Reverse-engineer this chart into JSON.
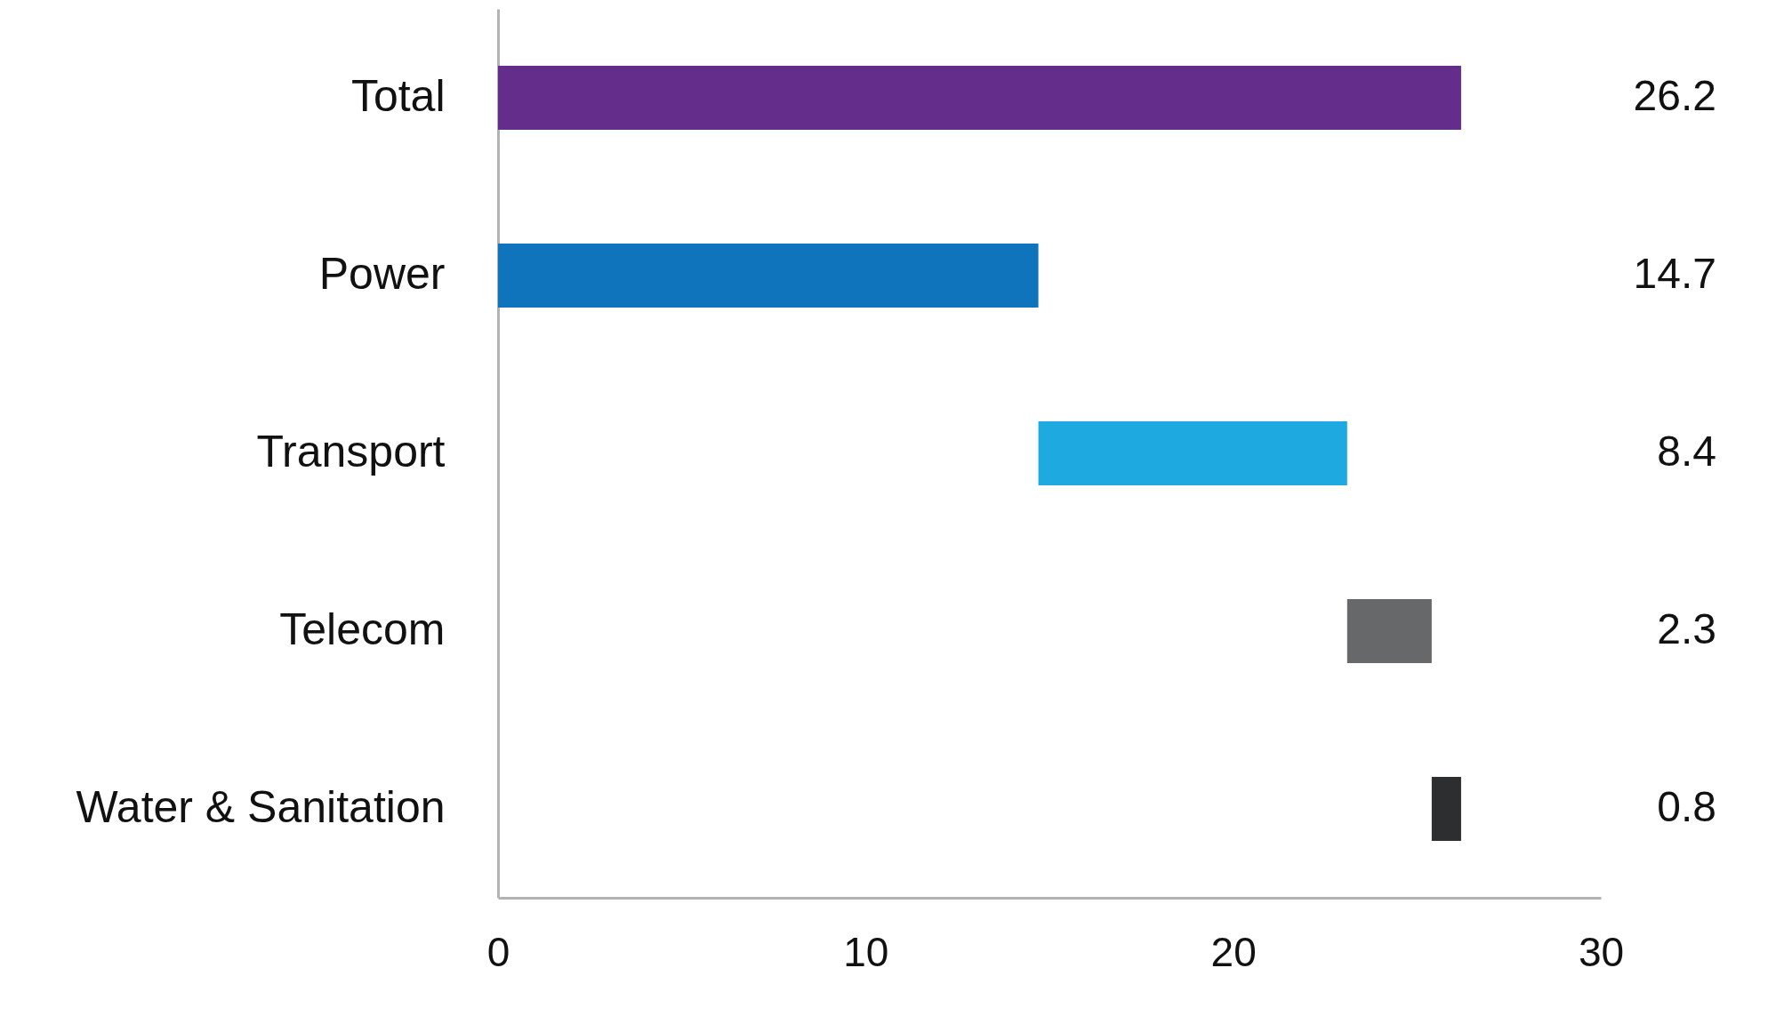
{
  "chart_data": {
    "type": "bar",
    "orientation": "horizontal",
    "categories": [
      "Total",
      "Power",
      "Transport",
      "Telecom",
      "Water & Sanitation"
    ],
    "values": [
      26.2,
      14.7,
      8.4,
      2.3,
      0.8
    ],
    "base": [
      0,
      0,
      14.7,
      23.1,
      25.4
    ],
    "colors": [
      "#642d8c",
      "#0f74bb",
      "#1fa9e1",
      "#676869",
      "#2c2e30"
    ],
    "xlim": [
      0,
      30
    ],
    "xticks": [
      0,
      10,
      20,
      30
    ],
    "data_labels": true,
    "grid": false
  }
}
